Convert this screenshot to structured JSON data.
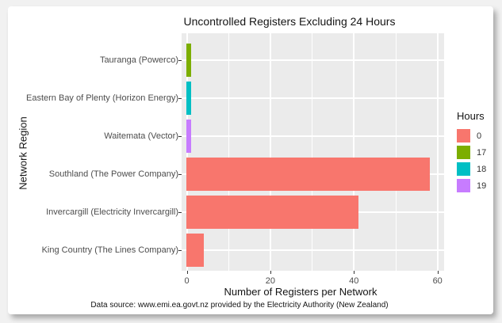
{
  "chart_data": {
    "type": "bar",
    "orientation": "horizontal",
    "title": "Uncontrolled Registers Excluding 24 Hours",
    "xlabel": "Number of Registers per Network",
    "ylabel": "Network Region",
    "caption": "Data source: www.emi.ea.govt.nz provided by the Electricity Authority (New Zealand)",
    "categories": [
      "Tauranga (Powerco)",
      "Eastern Bay of Plenty (Horizon Energy)",
      "Waitemata (Vector)",
      "Southland (The Power Company)",
      "Invercargill (Electricity Invercargill)",
      "King Country (The Lines Company)"
    ],
    "values": [
      1,
      1,
      1,
      58,
      41,
      4
    ],
    "bar_hours": [
      "17",
      "18",
      "19",
      "0",
      "0",
      "0"
    ],
    "x_ticks": [
      0,
      20,
      40,
      60
    ],
    "x_minor_ticks": [
      10,
      30,
      50
    ],
    "xlim": [
      0,
      62
    ],
    "grid": "on",
    "panel_background": "#EBEBEB",
    "gridline_color": "#FFFFFF",
    "legend": {
      "title": "Hours",
      "position": "right",
      "entries": [
        {
          "label": "0",
          "color": "#F8766D"
        },
        {
          "label": "17",
          "color": "#7CAE00"
        },
        {
          "label": "18",
          "color": "#00BFC4"
        },
        {
          "label": "19",
          "color": "#C77CFF"
        }
      ]
    }
  }
}
